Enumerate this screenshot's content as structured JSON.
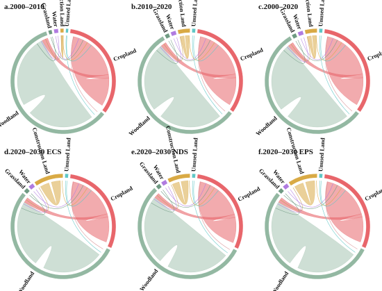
{
  "colors": {
    "Cropland": "#e8666b",
    "Woodland": "#93b8a2",
    "Grassland": "#6f9a82",
    "Water": "#b07be0",
    "Construction Land": "#d9aa45",
    "Unused Land": "#5fc7c6"
  },
  "categories": [
    "Cropland",
    "Woodland",
    "Grassland",
    "Water",
    "Construction Land",
    "Unused Land"
  ],
  "panels": [
    {
      "title": "a.2000–2010",
      "sizes": [
        120,
        215,
        4,
        5,
        4,
        3
      ]
    },
    {
      "title": "b.2010–2020",
      "sizes": [
        120,
        205,
        5,
        6,
        14,
        4
      ]
    },
    {
      "title": "c.2000–2020",
      "sizes": [
        120,
        205,
        5,
        6,
        14,
        4
      ]
    },
    {
      "title": "d.2020–2030 ECS",
      "sizes": [
        110,
        200,
        5,
        6,
        34,
        4
      ]
    },
    {
      "title": "e.2020–2030 NDS",
      "sizes": [
        110,
        205,
        5,
        6,
        26,
        4
      ]
    },
    {
      "title": "f.2020–2030 EPS",
      "sizes": [
        110,
        200,
        5,
        6,
        34,
        4
      ]
    }
  ]
}
